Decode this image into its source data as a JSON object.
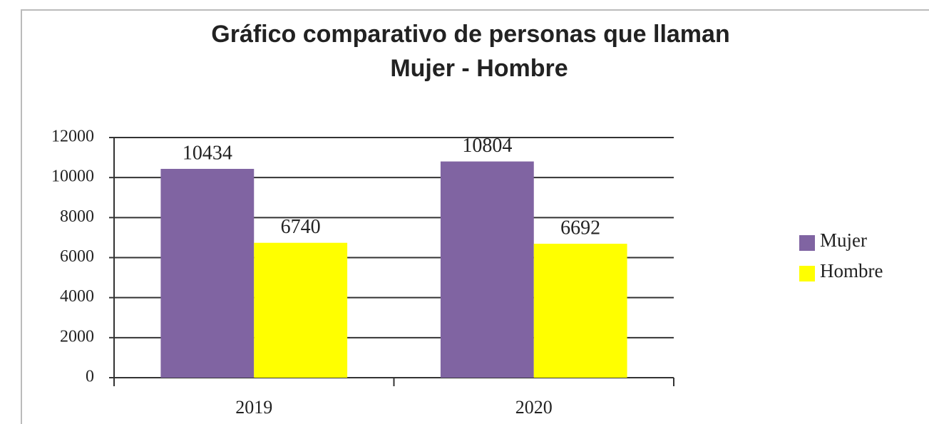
{
  "chart_data": {
    "type": "bar",
    "title": [
      "Gráfico comparativo de personas que llaman",
      "Mujer - Hombre"
    ],
    "categories": [
      "2019",
      "2020"
    ],
    "series": [
      {
        "name": "Mujer",
        "color": "#8064a2",
        "values": [
          10434,
          10804
        ]
      },
      {
        "name": "Hombre",
        "color": "#ffff00",
        "values": [
          6740,
          6692
        ]
      }
    ],
    "ylim": [
      0,
      12000
    ],
    "yticks": [
      0,
      2000,
      4000,
      6000,
      8000,
      10000,
      12000
    ],
    "grid": true,
    "legend": "right"
  }
}
